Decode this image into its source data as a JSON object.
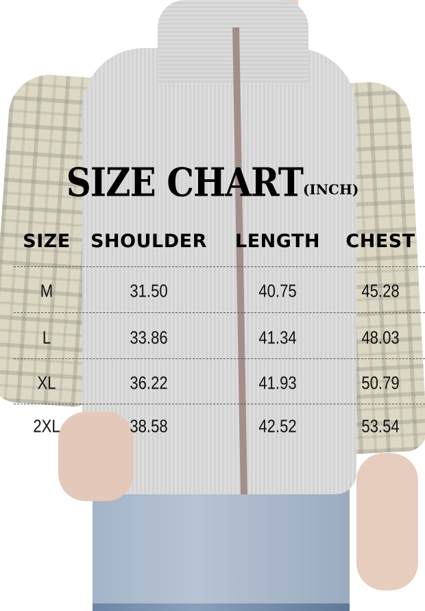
{
  "title": {
    "main": "SIZE CHART",
    "unit": "(INCH)"
  },
  "columns": [
    "SIZE",
    "SHOULDER",
    "LENGTH",
    "CHEST"
  ],
  "rows": [
    [
      "M",
      "31.50",
      "40.75",
      "45.28"
    ],
    [
      "L",
      "33.86",
      "41.34",
      "48.03"
    ],
    [
      "XL",
      "36.22",
      "41.93",
      "50.79"
    ],
    [
      "2XL",
      "38.58",
      "42.52",
      "53.54"
    ]
  ],
  "colors": {
    "text": "#000000",
    "vest": "#c2c2c2",
    "zipper": "#6b4a42",
    "shirt": "#c9c1a0"
  }
}
